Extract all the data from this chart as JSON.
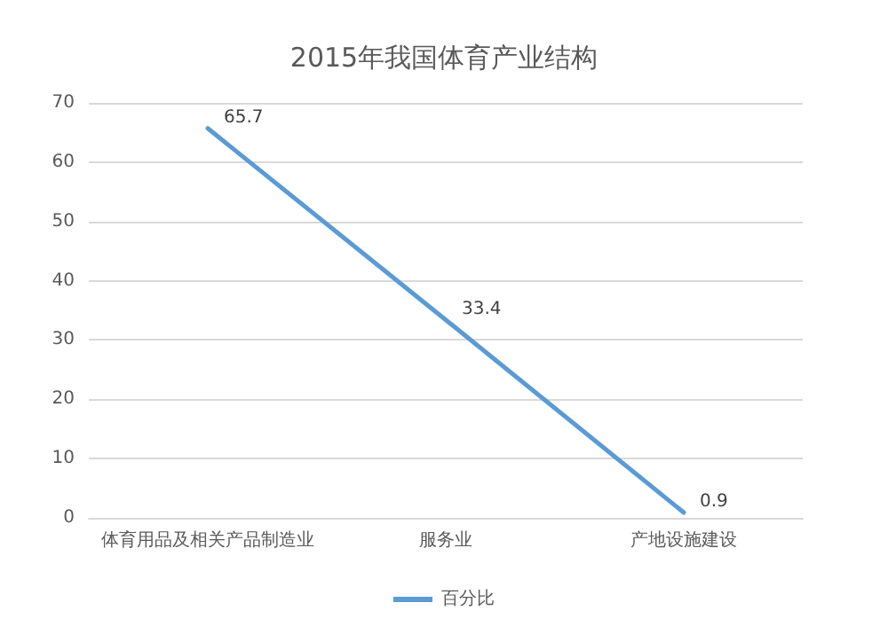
{
  "chart_data": {
    "type": "line",
    "title": "2015年我国体育产业结构",
    "categories": [
      "体育用品及相关产品制造业",
      "服务业",
      "产地设施建设"
    ],
    "series": [
      {
        "name": "百分比",
        "color": "#5b9bd5",
        "values": [
          65.7,
          33.4,
          0.9
        ]
      }
    ],
    "ylim": [
      0,
      70
    ],
    "yticks": [
      0,
      10,
      20,
      30,
      40,
      50,
      60,
      70
    ],
    "grid": "y",
    "legend": "bottom",
    "data_labels": true,
    "marker": "none"
  }
}
